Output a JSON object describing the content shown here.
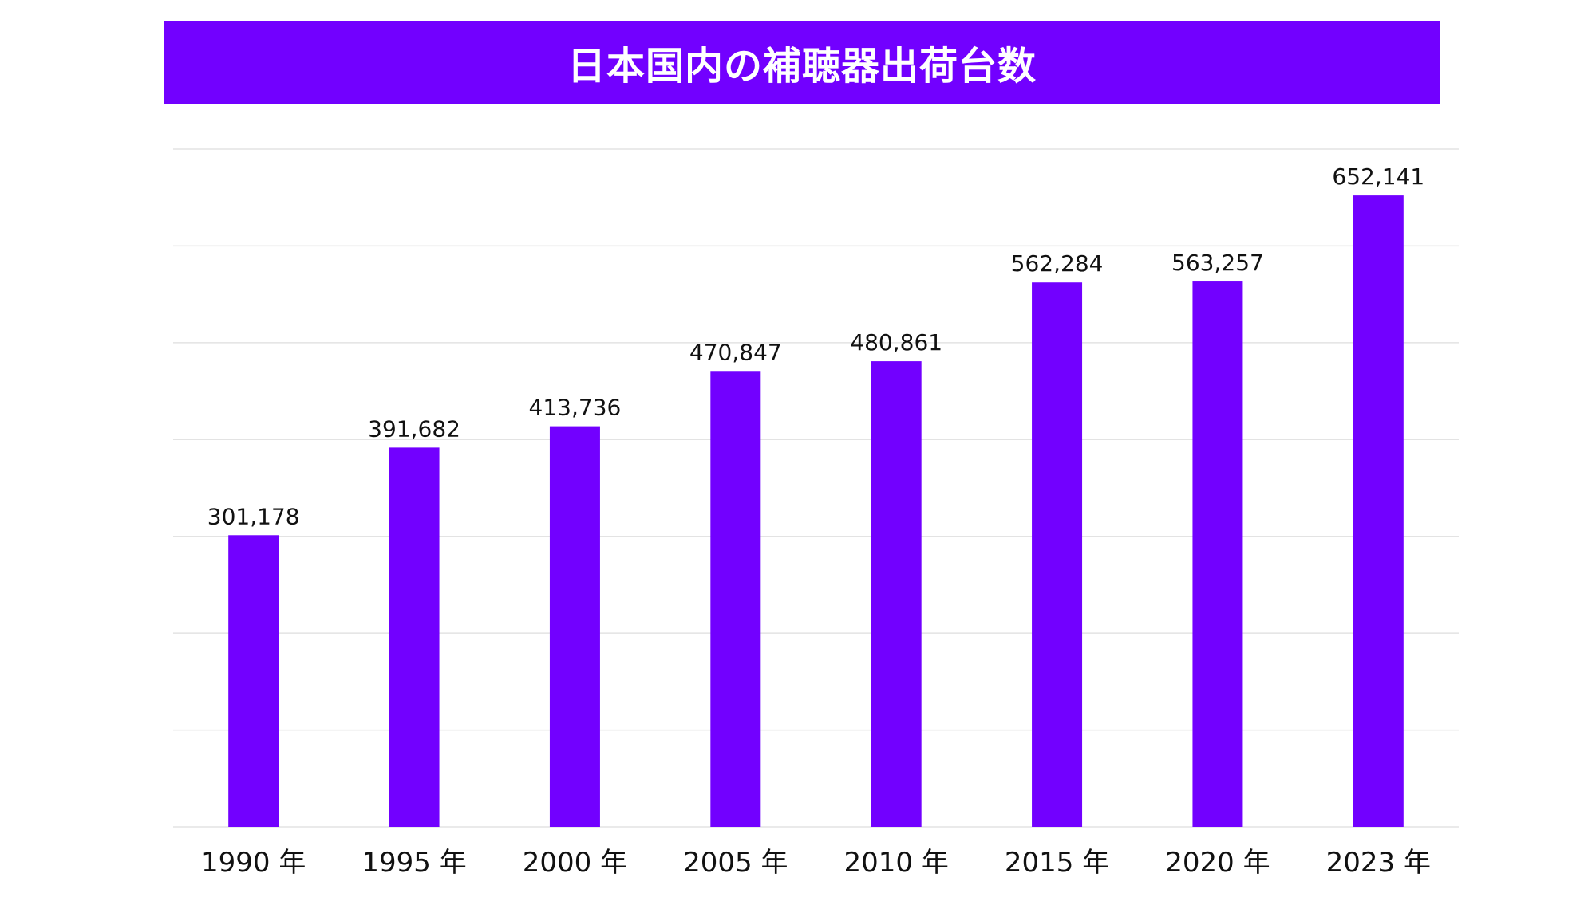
{
  "chart_data": {
    "type": "bar",
    "title": "日本国内の補聴器出荷台数",
    "categories": [
      "1990 年",
      "1995 年",
      "2000 年",
      "2005 年",
      "2010 年",
      "2015 年",
      "2020 年",
      "2023 年"
    ],
    "values": [
      301178,
      391682,
      413736,
      470847,
      480861,
      562284,
      563257,
      652141
    ],
    "data_labels": [
      "301,178",
      "391,682",
      "413,736",
      "470,847",
      "480,861",
      "562,284",
      "563,257",
      "652,141"
    ],
    "xlabel": "",
    "ylabel": "",
    "ylim": [
      0,
      700000
    ],
    "grid": true,
    "y_tick_step": 100000,
    "bar_color": "#7200ff"
  }
}
